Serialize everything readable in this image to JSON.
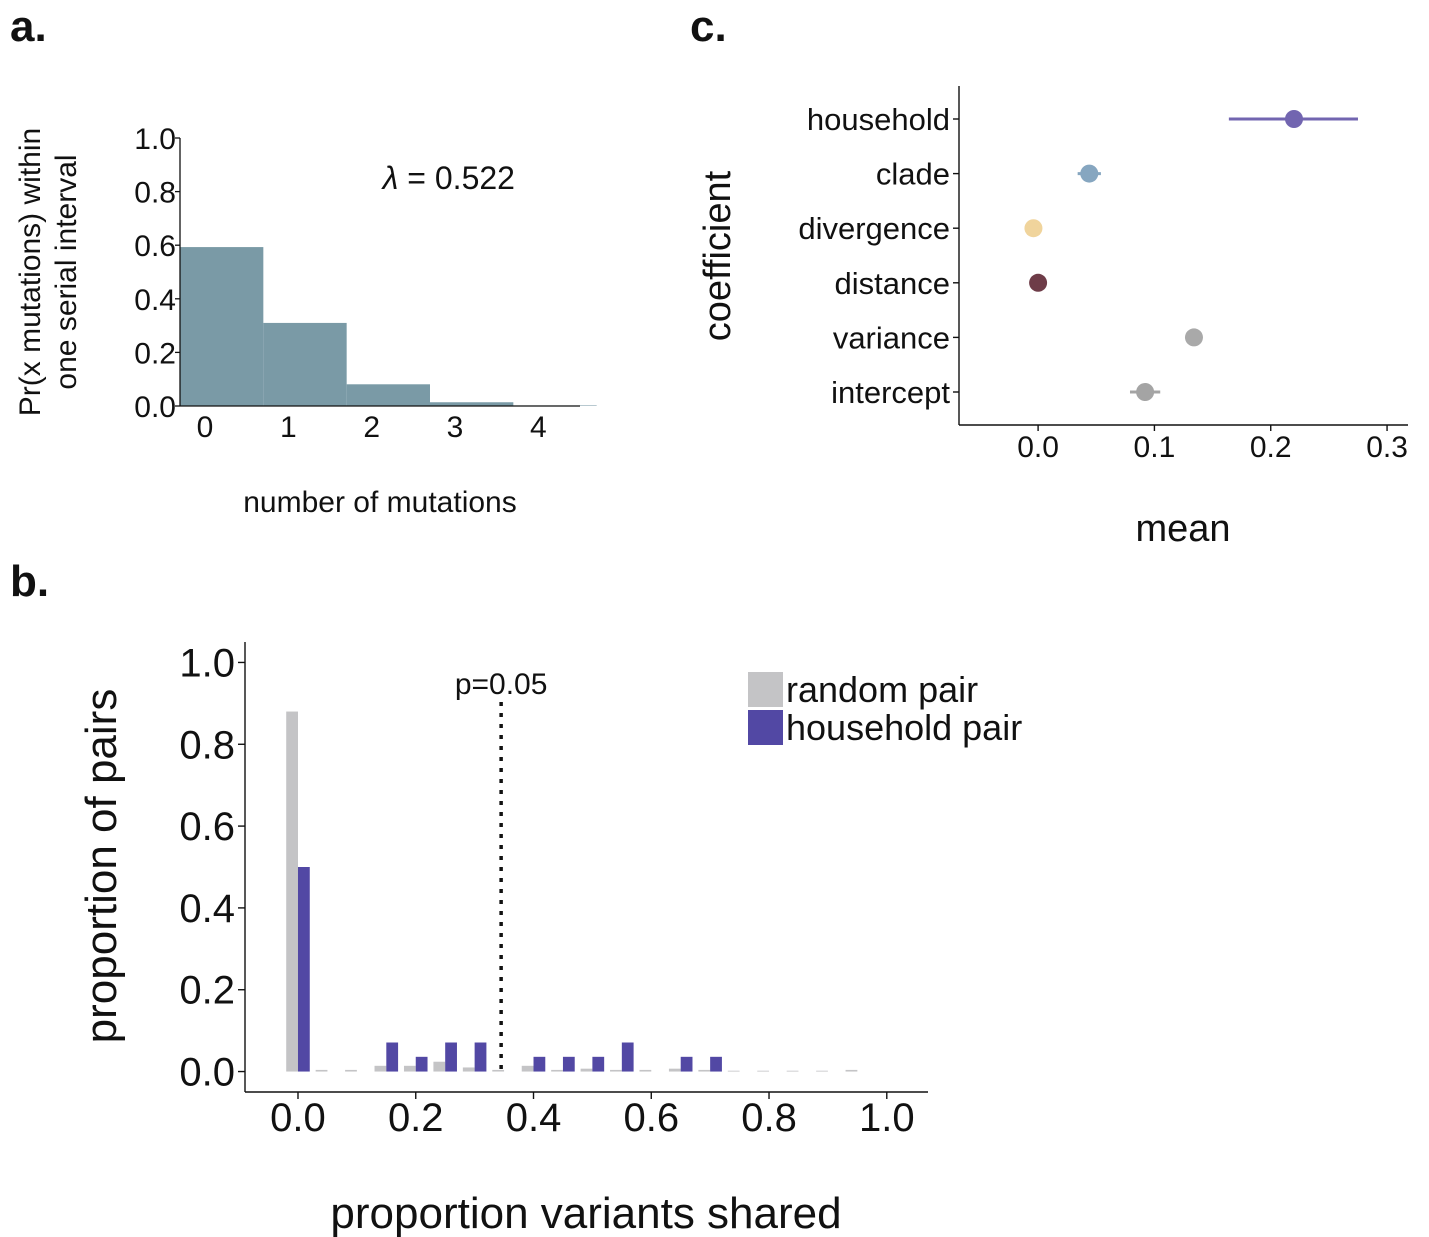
{
  "panels": {
    "a": "a.",
    "b": "b.",
    "c": "c."
  },
  "colors": {
    "histogram_bar": "#7a9aa6",
    "random_pair": "#c4c4c6",
    "household_pair": "#5248a4",
    "axis": "#111111"
  },
  "chart_data": [
    {
      "id": "a",
      "type": "bar",
      "xlabel": "number of mutations",
      "ylabel_lines": [
        "Pr(x mutations) within",
        "one serial interval"
      ],
      "annotation": {
        "symbol": "λ",
        "text": " = 0.522",
        "x": 2.3,
        "y": 0.85
      },
      "categories": [
        0,
        1,
        2,
        3,
        4
      ],
      "values": [
        0.593,
        0.31,
        0.081,
        0.014,
        0.002
      ],
      "xlim": [
        -0.3,
        4.5
      ],
      "ylim": [
        0,
        1.0
      ],
      "yticks": [
        "0.0",
        "0.2",
        "0.4",
        "0.6",
        "0.8",
        "1.0"
      ],
      "xticks": [
        "0",
        "1",
        "2",
        "3",
        "4"
      ],
      "color": "#7a9aa6"
    },
    {
      "id": "b",
      "type": "bar",
      "xlabel": "proportion variants shared",
      "ylabel": "proportion of pairs",
      "xlim": [
        -0.09,
        1.07
      ],
      "ylim": [
        -0.05,
        1.05
      ],
      "xticks": [
        "0.0",
        "0.2",
        "0.4",
        "0.6",
        "0.8",
        "1.0"
      ],
      "yticks": [
        "0.0",
        "0.2",
        "0.4",
        "0.6",
        "0.8",
        "1.0"
      ],
      "bins": [
        0.0,
        0.05,
        0.1,
        0.15,
        0.2,
        0.25,
        0.3,
        0.35,
        0.4,
        0.45,
        0.5,
        0.55,
        0.6,
        0.65,
        0.7,
        0.75,
        0.8,
        0.85,
        0.9,
        0.95
      ],
      "series": [
        {
          "name": "random pair",
          "color": "#c4c4c6",
          "values": [
            0.88,
            0.004,
            0.004,
            0.014,
            0.014,
            0.024,
            0.01,
            0.004,
            0.014,
            0.004,
            0.007,
            0.004,
            0.004,
            0.007,
            0.004,
            0.002,
            0.002,
            0.002,
            0.002,
            0.004
          ]
        },
        {
          "name": "household pair",
          "color": "#5248a4",
          "values": [
            0.5,
            0,
            0,
            0.071,
            0.036,
            0.071,
            0.071,
            0,
            0.036,
            0.036,
            0.036,
            0.071,
            0,
            0.036,
            0.036,
            0,
            0,
            0,
            0,
            0
          ]
        }
      ],
      "threshold": {
        "label": "p=0.05",
        "x": 0.345
      },
      "legend_position": "top-right"
    },
    {
      "id": "c",
      "type": "scatter",
      "xlabel": "mean",
      "ylabel": "coefficient",
      "xlim": [
        -0.068,
        0.318
      ],
      "xticks": [
        0.0,
        0.1,
        0.2,
        0.3
      ],
      "xtick_labels": [
        "0.0",
        "0.1",
        "0.2",
        "0.3"
      ],
      "categories": [
        "household",
        "clade",
        "divergence",
        "distance",
        "variance",
        "intercept"
      ],
      "points": [
        {
          "label": "household",
          "mean": 0.22,
          "low": 0.164,
          "high": 0.275,
          "color": "#7265b0"
        },
        {
          "label": "clade",
          "mean": 0.044,
          "low": 0.034,
          "high": 0.054,
          "color": "#86a6c0"
        },
        {
          "label": "divergence",
          "mean": -0.004,
          "low": -0.006,
          "high": -0.002,
          "color": "#f0d49c"
        },
        {
          "label": "distance",
          "mean": 0.0,
          "low": -0.002,
          "high": 0.002,
          "color": "#6e3c48"
        },
        {
          "label": "variance",
          "mean": 0.134,
          "low": 0.129,
          "high": 0.139,
          "color": "#a9a9a9"
        },
        {
          "label": "intercept",
          "mean": 0.092,
          "low": 0.079,
          "high": 0.105,
          "color": "#a4a4a4"
        }
      ]
    }
  ]
}
